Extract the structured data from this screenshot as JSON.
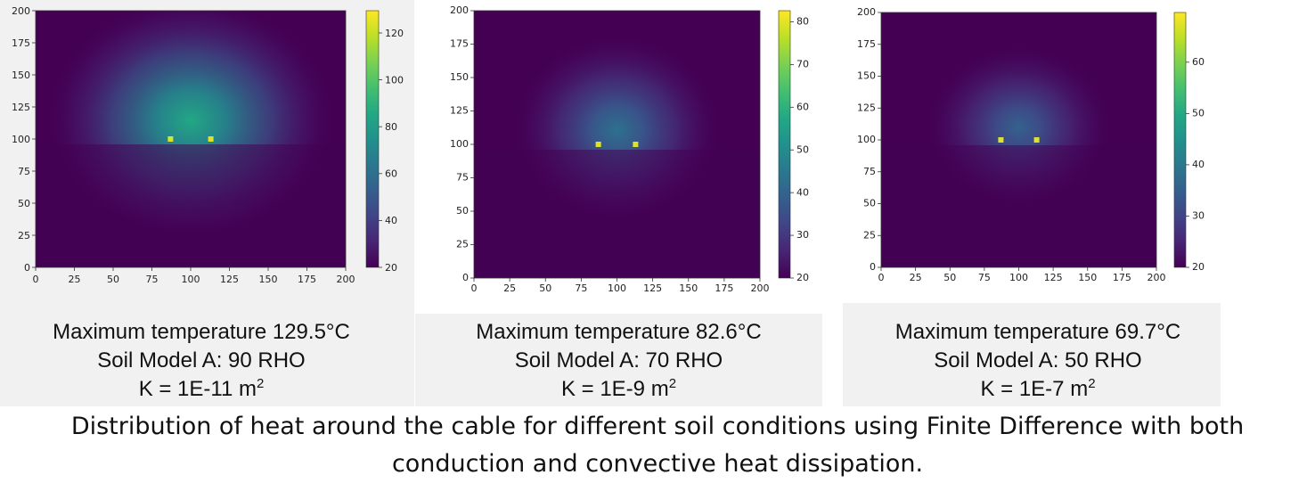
{
  "chart_data": [
    {
      "type": "heatmap",
      "x": {
        "range": [
          0,
          200
        ],
        "ticks": [
          "0",
          "25",
          "50",
          "75",
          "100",
          "125",
          "150",
          "175",
          "200"
        ]
      },
      "y": {
        "range": [
          0,
          200
        ],
        "ticks": [
          "0",
          "25",
          "50",
          "75",
          "100",
          "125",
          "150",
          "175",
          "200"
        ]
      },
      "colorbar": {
        "range": [
          20,
          129.5
        ],
        "ticks": [
          "20",
          "40",
          "60",
          "80",
          "100",
          "120"
        ]
      },
      "background_temp": 20,
      "max_temp": 129.5,
      "hot_spots": [
        {
          "x": 87,
          "y": 100
        },
        {
          "x": 113,
          "y": 100
        }
      ],
      "spread": 0.55,
      "caption": [
        "Maximum temperature 129.5°C",
        "Soil Model A: 90 RHO",
        "K = 1E-11 m"
      ],
      "caption_sup": "2"
    },
    {
      "type": "heatmap",
      "x": {
        "range": [
          0,
          200
        ],
        "ticks": [
          "0",
          "25",
          "50",
          "75",
          "100",
          "125",
          "150",
          "175",
          "200"
        ]
      },
      "y": {
        "range": [
          0,
          200
        ],
        "ticks": [
          "0",
          "25",
          "50",
          "75",
          "100",
          "125",
          "150",
          "175",
          "200"
        ]
      },
      "colorbar": {
        "range": [
          20,
          82.6
        ],
        "ticks": [
          "20",
          "30",
          "40",
          "50",
          "60",
          "70",
          "80"
        ]
      },
      "background_temp": 20,
      "max_temp": 82.6,
      "hot_spots": [
        {
          "x": 87,
          "y": 100
        },
        {
          "x": 113,
          "y": 100
        }
      ],
      "spread": 0.32,
      "caption": [
        "Maximum temperature 82.6°C",
        "Soil Model A: 70 RHO",
        "K = 1E-9 m"
      ],
      "caption_sup": "2"
    },
    {
      "type": "heatmap",
      "x": {
        "range": [
          0,
          200
        ],
        "ticks": [
          "0",
          "25",
          "50",
          "75",
          "100",
          "125",
          "150",
          "175",
          "200"
        ]
      },
      "y": {
        "range": [
          0,
          200
        ],
        "ticks": [
          "0",
          "25",
          "50",
          "75",
          "100",
          "125",
          "150",
          "175",
          "200"
        ]
      },
      "colorbar": {
        "range": [
          20,
          69.7
        ],
        "ticks": [
          "20",
          "30",
          "40",
          "50",
          "60"
        ]
      },
      "background_temp": 20,
      "max_temp": 69.7,
      "hot_spots": [
        {
          "x": 87,
          "y": 100
        },
        {
          "x": 113,
          "y": 100
        }
      ],
      "spread": 0.26,
      "caption": [
        "Maximum temperature 69.7°C",
        "Soil Model A: 50 RHO",
        "K = 1E-7 m"
      ],
      "caption_sup": "2"
    }
  ],
  "figure_caption": {
    "line1": "Distribution of heat around the cable for different soil conditions using Finite Difference with both",
    "line2": "conduction and convective heat dissipation."
  }
}
